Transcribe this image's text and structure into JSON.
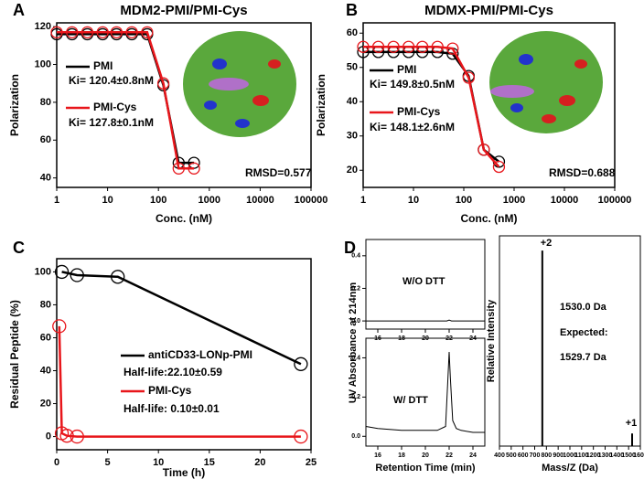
{
  "chart_data": [
    {
      "type": "line",
      "panel": "A",
      "title": "MDM2-PMI/PMI-Cys",
      "xscale": "log",
      "x": [
        1,
        2,
        4,
        8,
        15,
        30,
        60,
        125,
        250,
        500
      ],
      "xlim": [
        1,
        100000
      ],
      "xticks": [
        1,
        10,
        100,
        1000,
        10000,
        100000
      ],
      "ylim": [
        35,
        122
      ],
      "yticks": [
        40,
        60,
        80,
        100,
        120
      ],
      "xlabel": "Conc. (nM)",
      "ylabel": "Polarization",
      "series": [
        {
          "name": "PMI",
          "color": "#000000",
          "marker": "circle",
          "values": [
            116,
            116,
            116,
            116,
            116,
            116,
            116,
            89,
            48,
            48
          ]
        },
        {
          "name": "PMI-Cys",
          "color": "#e8161b",
          "marker": "circle",
          "values": [
            117,
            117,
            117,
            117,
            117,
            117,
            117,
            90,
            45,
            45
          ]
        }
      ],
      "annotations": [
        "Ki= 120.4±0.8nM",
        "Ki= 127.8±0.1nM",
        "RMSD=0.577"
      ]
    },
    {
      "type": "line",
      "panel": "B",
      "title": "MDMX-PMI/PMI-Cys",
      "xscale": "log",
      "x": [
        1,
        2,
        4,
        8,
        15,
        30,
        60,
        125,
        250,
        500
      ],
      "xlim": [
        1,
        100000
      ],
      "xticks": [
        1,
        10,
        100,
        1000,
        10000,
        100000
      ],
      "ylim": [
        15,
        63
      ],
      "yticks": [
        20,
        30,
        40,
        50,
        60
      ],
      "xlabel": "Conc. (nM)",
      "ylabel": "Polarization",
      "series": [
        {
          "name": "PMI",
          "color": "#000000",
          "marker": "circle",
          "values": [
            54.5,
            54.5,
            54.5,
            54.5,
            54.5,
            54.5,
            54,
            47.5,
            26,
            22.5
          ]
        },
        {
          "name": "PMI-Cys",
          "color": "#e8161b",
          "marker": "circle",
          "values": [
            56,
            56,
            56,
            56,
            56,
            56,
            55.5,
            47,
            26,
            21
          ]
        }
      ],
      "annotations": [
        "Ki= 149.8±0.5nM",
        "Ki= 148.1±2.6nM",
        "RMSD=0.688"
      ]
    },
    {
      "type": "line",
      "panel": "C",
      "xlim": [
        0,
        25
      ],
      "xticks": [
        0,
        5,
        10,
        15,
        20,
        25
      ],
      "ylim": [
        -8,
        108
      ],
      "yticks": [
        0,
        20,
        40,
        60,
        80,
        100
      ],
      "xlabel": "Time (h)",
      "ylabel": "Residual Peptide (%)",
      "series": [
        {
          "name": "antiCD33-LONp-PMI",
          "color": "#000000",
          "marker": "circle",
          "x": [
            0.5,
            2,
            6,
            24
          ],
          "values": [
            100,
            98,
            97,
            44
          ]
        },
        {
          "name": "PMI-Cys",
          "color": "#e8161b",
          "marker": "circle",
          "x": [
            0.25,
            0.5,
            1,
            2,
            24
          ],
          "values": [
            67,
            2,
            0.5,
            0,
            0
          ]
        }
      ],
      "annotations": [
        "Half-life:22.10±0.59",
        "Half-life: 0.10±0.01"
      ]
    },
    {
      "type": "line",
      "panel": "D",
      "xlim": [
        15,
        25
      ],
      "xticks": [
        16,
        18,
        20,
        22,
        24
      ],
      "ylim": [
        -0.05,
        0.5
      ],
      "yticks": [
        {
          "value": 0,
          "label": "0.0"
        },
        {
          "value": 0.2,
          "label": "0.2"
        },
        {
          "value": 0.4,
          "label": "0.4"
        }
      ],
      "series": [
        {
          "color": "#000000",
          "x": [
            15,
            21.8,
            22,
            22.2,
            25
          ],
          "values": [
            0,
            0,
            0.005,
            0,
            0
          ]
        }
      ],
      "annotations": [
        "W/O DTT"
      ]
    },
    {
      "type": "line",
      "xlim": [
        15,
        25
      ],
      "xticks": [
        16,
        18,
        20,
        22,
        24
      ],
      "ylim": [
        -0.05,
        0.5
      ],
      "yticks": [
        {
          "value": 0,
          "label": "0.0"
        },
        {
          "value": 0.2,
          "label": "0.2"
        },
        {
          "value": 0.4,
          "label": "0.4"
        }
      ],
      "xlabel": "Retention Time (min)",
      "ylabel": "UV Absorbance at 214nm",
      "series": [
        {
          "color": "#000000",
          "x": [
            15,
            16,
            18,
            20,
            21,
            21.7,
            21.9,
            22,
            22.1,
            22.3,
            22.6,
            23,
            24,
            25
          ],
          "values": [
            0.05,
            0.04,
            0.03,
            0.03,
            0.03,
            0.05,
            0.3,
            0.43,
            0.3,
            0.08,
            0.04,
            0.03,
            0.02,
            0.02
          ]
        }
      ],
      "annotations": [
        "W/ DTT"
      ]
    },
    {
      "type": "bar",
      "xlim": [
        400,
        1600
      ],
      "xticks": [
        400,
        500,
        600,
        700,
        800,
        900,
        1000,
        1100,
        1200,
        1300,
        1400,
        1500,
        1600
      ],
      "ylim": [
        0,
        1
      ],
      "xlabel": "Mass/Z (Da)",
      "ylabel": "Relative Intensity",
      "x": [
        765,
        1530
      ],
      "values": [
        0.93,
        0.06
      ],
      "color": "#000000",
      "annotations": [
        "+2",
        "+1",
        "1530.0 Da",
        "Expected:",
        "1529.7 Da"
      ]
    }
  ]
}
